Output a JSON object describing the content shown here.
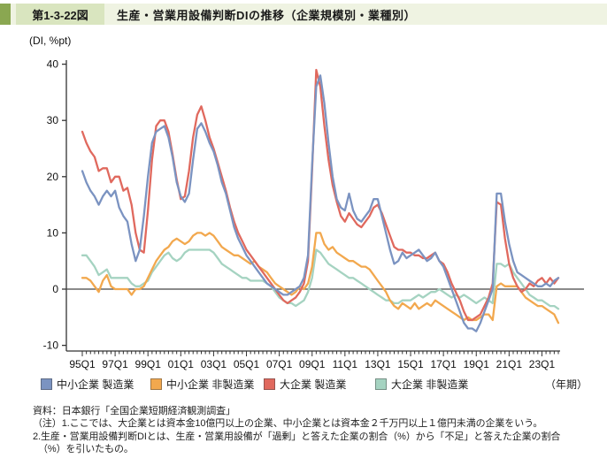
{
  "header": {
    "figure_no": "第1-3-22図",
    "title": "生産・営業用設備判断DIの推移（企業規模別・業種別）"
  },
  "chart_data": {
    "type": "line",
    "unit_label": "(DI, %pt)",
    "x_axis_note": "（年期）",
    "x_start": "1995Q1",
    "x_end": "2024Q1",
    "frequency": "quarterly",
    "x_tick_labels": [
      "95Q1",
      "97Q1",
      "99Q1",
      "01Q1",
      "03Q1",
      "05Q1",
      "07Q1",
      "09Q1",
      "11Q1",
      "13Q1",
      "15Q1",
      "17Q1",
      "19Q1",
      "21Q1",
      "23Q1"
    ],
    "y_ticks": [
      40,
      30,
      20,
      10,
      0,
      -10
    ],
    "ylim": [
      -10,
      40
    ],
    "zero_line": true,
    "grid": false,
    "legend_position": "bottom",
    "series": [
      {
        "name": "中小企業 製造業",
        "color": "#7b93c1",
        "values": [
          21,
          19,
          17.5,
          16.5,
          15,
          16.5,
          17.5,
          16.5,
          17.5,
          14.5,
          13,
          12,
          8,
          5,
          7,
          13,
          20,
          26,
          28,
          28.5,
          29,
          27,
          23.5,
          19,
          16.5,
          15.5,
          17,
          23,
          28.5,
          29.5,
          28,
          26,
          24.5,
          22,
          19,
          17,
          14,
          11,
          9,
          7.5,
          6,
          5,
          4,
          3,
          2,
          1,
          0.5,
          0,
          -0.5,
          -1,
          -1,
          -0.5,
          0,
          0.5,
          2,
          6,
          22,
          36,
          38,
          33,
          26,
          20,
          16,
          14.5,
          14,
          17,
          14,
          12.5,
          12,
          13,
          14,
          16,
          16,
          13,
          10,
          7,
          4.5,
          5,
          6.5,
          5.5,
          6,
          6.5,
          7,
          6,
          5,
          5.5,
          6.5,
          5,
          4,
          2,
          0,
          -2,
          -4,
          -6,
          -7,
          -7,
          -7.5,
          -6,
          -4,
          -2,
          0,
          17,
          17,
          12,
          8,
          5,
          3,
          2.5,
          2,
          1.5,
          1,
          0.5,
          0.5,
          1,
          0.5,
          1.5,
          2
        ]
      },
      {
        "name": "中小企業 非製造業",
        "color": "#f2a84e",
        "values": [
          2,
          2,
          1.5,
          0.5,
          -0.5,
          1.5,
          2.5,
          0.5,
          0,
          0,
          0,
          0,
          -1,
          0,
          0,
          0.5,
          2,
          3.5,
          5,
          6,
          7,
          7.5,
          8.5,
          9,
          8.5,
          8,
          8.5,
          9.5,
          10,
          10,
          9.5,
          10,
          9.5,
          8.5,
          7.5,
          7,
          6.5,
          6,
          6,
          5.5,
          5,
          4.5,
          5,
          4,
          3.5,
          3,
          2,
          1,
          0.5,
          0,
          -0.5,
          -1,
          -0.5,
          0.5,
          0,
          1,
          4,
          10,
          10,
          8,
          7,
          7.5,
          6.5,
          6,
          5.5,
          5,
          5,
          4.5,
          4,
          4,
          3.5,
          2.5,
          1.5,
          0.5,
          -0.5,
          -2,
          -3,
          -3.5,
          -2.5,
          -3,
          -3.5,
          -2.5,
          -3.5,
          -3,
          -2.5,
          -3,
          -2,
          -2.5,
          -3,
          -3.5,
          -4,
          -4.5,
          -5,
          -5.5,
          -5,
          -5.5,
          -5.5,
          -5,
          -4.5,
          -4.5,
          -5.5,
          0.5,
          1,
          0.5,
          0.5,
          0.5,
          0.5,
          -0.5,
          -1.5,
          -2,
          -2.5,
          -3,
          -3,
          -3.5,
          -4,
          -4.5,
          -6
        ]
      },
      {
        "name": "大企業 製造業",
        "color": "#e0695e",
        "values": [
          28,
          26,
          24.5,
          23.5,
          21,
          21.5,
          21.5,
          19,
          20,
          20,
          17.5,
          18,
          15,
          10,
          7,
          6.5,
          14,
          23,
          29,
          30,
          30,
          28,
          24,
          19.5,
          16,
          16.5,
          21,
          27,
          31,
          32.5,
          30,
          27,
          25,
          22.5,
          20,
          17.5,
          14.5,
          12,
          10,
          8.5,
          7,
          6,
          5,
          4,
          3,
          2,
          1,
          0,
          -1,
          -2,
          -2.5,
          -2,
          -1.5,
          -0.5,
          1,
          5,
          21,
          39,
          36,
          29,
          23,
          18.5,
          15.5,
          13,
          12,
          13.5,
          12.5,
          11.5,
          11,
          12,
          13,
          14.5,
          15,
          13.5,
          11.5,
          9.5,
          7.5,
          7,
          7,
          6.5,
          6.5,
          6,
          6,
          5.5,
          5.5,
          6,
          6.5,
          5,
          4.5,
          3,
          1,
          -0.5,
          -2,
          -4,
          -5.5,
          -5.5,
          -5,
          -4.5,
          -3,
          -1.5,
          1,
          15.5,
          15,
          9,
          4.5,
          2,
          0.5,
          -0.5,
          0,
          1,
          0.5,
          1.5,
          2,
          1,
          2,
          1,
          2
        ]
      },
      {
        "name": "大企業 非製造業",
        "color": "#a5d3c1",
        "values": [
          6,
          6,
          5,
          4,
          2.5,
          3,
          3.5,
          2,
          2,
          2,
          2,
          2,
          1,
          0.5,
          0.5,
          1,
          1.5,
          3,
          4,
          5,
          6,
          6.5,
          5.5,
          5,
          5.5,
          6.5,
          7,
          7,
          7,
          7,
          7,
          7,
          6.5,
          5.5,
          4.5,
          4,
          3.5,
          3,
          2.5,
          2,
          2,
          1.5,
          1.5,
          1.5,
          1.5,
          1,
          0.5,
          -0.5,
          -1.5,
          -2,
          -2.5,
          -2.5,
          -3,
          -2.5,
          -2,
          -0.5,
          2,
          7,
          6.5,
          5.5,
          4.5,
          4,
          3.5,
          3,
          2.5,
          2,
          2,
          1.5,
          1,
          0.5,
          0,
          -0.5,
          -1,
          -1.5,
          -2,
          -2,
          -2.5,
          -2.5,
          -2,
          -2,
          -2,
          -1.5,
          -1,
          -1.5,
          -1,
          -0.5,
          -0.5,
          0,
          -0.5,
          -1,
          -1.5,
          -1,
          -1.5,
          -1,
          -1.5,
          -2,
          -2.5,
          -2,
          -1.5,
          -2,
          -2.5,
          4.5,
          4.5,
          4,
          4.5,
          3,
          2,
          1,
          0,
          -1,
          -1.5,
          -2,
          -2,
          -2.5,
          -3,
          -3,
          -3.5
        ]
      }
    ]
  },
  "legend_layout": {
    "item_lefts": [
      46,
      170,
      298,
      424
    ]
  },
  "notes": {
    "source": "資料：日本銀行「全国企業短期経済観測調査」",
    "note1": "（注）1.ここでは、大企業とは資本金10億円以上の企業、中小企業とは資本金２千万円以上１億円未満の企業をいう。",
    "note2": "2.生産・営業用設備判断DIとは、生産・営業用設備が「過剰」と答えた企業の割合（%）から「不足」と答えた企業の割合",
    "note2b": "（%）を引いたもの。"
  }
}
